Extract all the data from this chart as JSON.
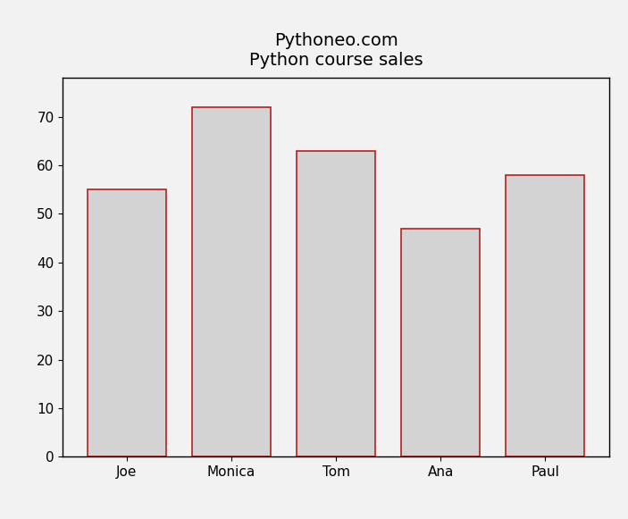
{
  "categories": [
    "Joe",
    "Monica",
    "Tom",
    "Ana",
    "Paul"
  ],
  "values": [
    55,
    72,
    63,
    47,
    58
  ],
  "bar_color": "#d3d3d3",
  "bar_edgecolor": "#b22222",
  "bar_linewidth": 1.2,
  "title_line1": "Pythoneo.com",
  "title_line2": "Python course sales",
  "title_fontsize": 14,
  "tick_fontsize": 11,
  "ylim": [
    0,
    78
  ],
  "yticks": [
    0,
    10,
    20,
    30,
    40,
    50,
    60,
    70
  ],
  "background_color": "#f2f2f2",
  "axes_background": "#f2f2f2",
  "bar_width": 0.75,
  "figsize": [
    7.03,
    5.81
  ],
  "dpi": 100
}
